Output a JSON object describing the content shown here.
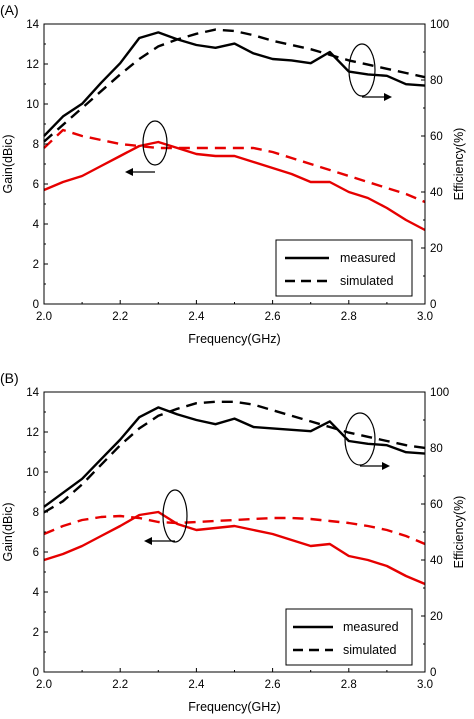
{
  "chart_data": [
    {
      "type": "line",
      "panel_label": "(A)",
      "xlabel": "Frequency(GHz)",
      "ylabel_left": "Gain(dBic)",
      "ylabel_right": "Efficiency(%)",
      "xlim": [
        2.0,
        3.0
      ],
      "ylim_left": [
        0,
        14
      ],
      "ylim_right": [
        0,
        100
      ],
      "x_ticks": [
        "2.0",
        "2.2",
        "2.4",
        "2.6",
        "2.8",
        "3.0"
      ],
      "y_left_ticks": [
        "0",
        "2",
        "4",
        "6",
        "8",
        "10",
        "12",
        "14"
      ],
      "y_right_ticks": [
        "0",
        "20",
        "40",
        "60",
        "80",
        "100"
      ],
      "grid": false,
      "legend_position": "bottom-right",
      "legend": [
        "measured",
        "simulated"
      ],
      "series": [
        {
          "axis": "right",
          "style": "measured",
          "color": "#000000",
          "x": [
            2.0,
            2.05,
            2.1,
            2.15,
            2.2,
            2.25,
            2.3,
            2.35,
            2.4,
            2.45,
            2.5,
            2.55,
            2.6,
            2.65,
            2.7,
            2.75,
            2.8,
            2.85,
            2.9,
            2.95,
            3.0
          ],
          "values": [
            60,
            67,
            71.5,
            79,
            86,
            95,
            97,
            94.5,
            92.5,
            91.5,
            93,
            89.5,
            87.5,
            87,
            86,
            90,
            83,
            82,
            81.5,
            78.5,
            78
          ]
        },
        {
          "axis": "right",
          "style": "simulated",
          "color": "#000000",
          "x": [
            2.0,
            2.05,
            2.1,
            2.15,
            2.2,
            2.25,
            2.3,
            2.35,
            2.4,
            2.45,
            2.5,
            2.55,
            2.6,
            2.65,
            2.7,
            2.75,
            2.8,
            2.85,
            2.9,
            2.95,
            3.0
          ],
          "values": [
            58,
            64,
            70,
            76,
            82,
            87.5,
            92,
            94.5,
            96.5,
            98,
            97.5,
            96,
            94,
            92.5,
            91,
            89,
            87,
            85.5,
            84,
            82.5,
            81
          ]
        },
        {
          "axis": "left",
          "style": "measured",
          "color": "#e60000",
          "x": [
            2.0,
            2.05,
            2.1,
            2.15,
            2.2,
            2.25,
            2.3,
            2.35,
            2.4,
            2.45,
            2.5,
            2.55,
            2.6,
            2.65,
            2.7,
            2.75,
            2.8,
            2.85,
            2.9,
            2.95,
            3.0
          ],
          "values": [
            5.7,
            6.1,
            6.4,
            6.9,
            7.4,
            7.9,
            8.1,
            7.8,
            7.5,
            7.4,
            7.4,
            7.1,
            6.8,
            6.5,
            6.1,
            6.1,
            5.6,
            5.3,
            4.8,
            4.2,
            3.7
          ]
        },
        {
          "axis": "left",
          "style": "simulated",
          "color": "#e60000",
          "x": [
            2.0,
            2.05,
            2.1,
            2.15,
            2.2,
            2.25,
            2.3,
            2.35,
            2.4,
            2.45,
            2.5,
            2.55,
            2.6,
            2.65,
            2.7,
            2.75,
            2.8,
            2.85,
            2.9,
            2.95,
            3.0
          ],
          "values": [
            7.8,
            8.7,
            8.4,
            8.2,
            8.0,
            7.9,
            7.8,
            7.8,
            7.8,
            7.8,
            7.8,
            7.8,
            7.6,
            7.3,
            7.0,
            6.7,
            6.4,
            6.1,
            5.8,
            5.5,
            5.1
          ]
        }
      ]
    },
    {
      "type": "line",
      "panel_label": "(B)",
      "xlabel": "Frequency(GHz)",
      "ylabel_left": "Gain(dBic)",
      "ylabel_right": "Efficiency(%)",
      "xlim": [
        2.0,
        3.0
      ],
      "ylim_left": [
        0,
        14
      ],
      "ylim_right": [
        0,
        100
      ],
      "x_ticks": [
        "2.0",
        "2.2",
        "2.4",
        "2.6",
        "2.8",
        "3.0"
      ],
      "y_left_ticks": [
        "0",
        "2",
        "4",
        "6",
        "8",
        "10",
        "12",
        "14"
      ],
      "y_right_ticks": [
        "0",
        "20",
        "40",
        "60",
        "80",
        "100"
      ],
      "grid": false,
      "legend_position": "bottom-right",
      "legend": [
        "measured",
        "simulated"
      ],
      "series": [
        {
          "axis": "right",
          "style": "measured",
          "color": "#000000",
          "x": [
            2.0,
            2.05,
            2.1,
            2.15,
            2.2,
            2.25,
            2.3,
            2.35,
            2.4,
            2.45,
            2.5,
            2.55,
            2.6,
            2.65,
            2.7,
            2.75,
            2.8,
            2.85,
            2.9,
            2.95,
            3.0
          ],
          "values": [
            59,
            64,
            69,
            76,
            83,
            91,
            94.5,
            92,
            90,
            88.5,
            90.5,
            87.5,
            87,
            86.5,
            86,
            89.5,
            82.5,
            81.5,
            81,
            78.5,
            78
          ]
        },
        {
          "axis": "right",
          "style": "simulated",
          "color": "#000000",
          "x": [
            2.0,
            2.05,
            2.1,
            2.15,
            2.2,
            2.25,
            2.3,
            2.35,
            2.4,
            2.45,
            2.5,
            2.55,
            2.6,
            2.65,
            2.7,
            2.75,
            2.8,
            2.85,
            2.9,
            2.95,
            3.0
          ],
          "values": [
            57,
            61,
            67,
            74,
            81,
            87,
            91.5,
            94,
            96,
            96.5,
            96.5,
            95.5,
            93.5,
            91.5,
            89.5,
            87.5,
            85.5,
            84,
            82.5,
            81,
            80
          ]
        },
        {
          "axis": "left",
          "style": "measured",
          "color": "#e60000",
          "x": [
            2.0,
            2.05,
            2.1,
            2.15,
            2.2,
            2.25,
            2.3,
            2.35,
            2.4,
            2.45,
            2.5,
            2.55,
            2.6,
            2.65,
            2.7,
            2.75,
            2.8,
            2.85,
            2.9,
            2.95,
            3.0
          ],
          "values": [
            5.6,
            5.9,
            6.3,
            6.8,
            7.3,
            7.85,
            8.0,
            7.4,
            7.1,
            7.2,
            7.3,
            7.1,
            6.9,
            6.6,
            6.3,
            6.4,
            5.8,
            5.6,
            5.3,
            4.8,
            4.4
          ]
        },
        {
          "axis": "left",
          "style": "simulated",
          "color": "#e60000",
          "x": [
            2.0,
            2.05,
            2.1,
            2.15,
            2.2,
            2.25,
            2.3,
            2.35,
            2.4,
            2.45,
            2.5,
            2.55,
            2.6,
            2.65,
            2.7,
            2.75,
            2.8,
            2.85,
            2.9,
            2.95,
            3.0
          ],
          "values": [
            6.9,
            7.3,
            7.6,
            7.75,
            7.8,
            7.7,
            7.5,
            7.45,
            7.5,
            7.55,
            7.6,
            7.65,
            7.7,
            7.7,
            7.65,
            7.55,
            7.45,
            7.3,
            7.1,
            6.8,
            6.4
          ]
        }
      ]
    }
  ]
}
